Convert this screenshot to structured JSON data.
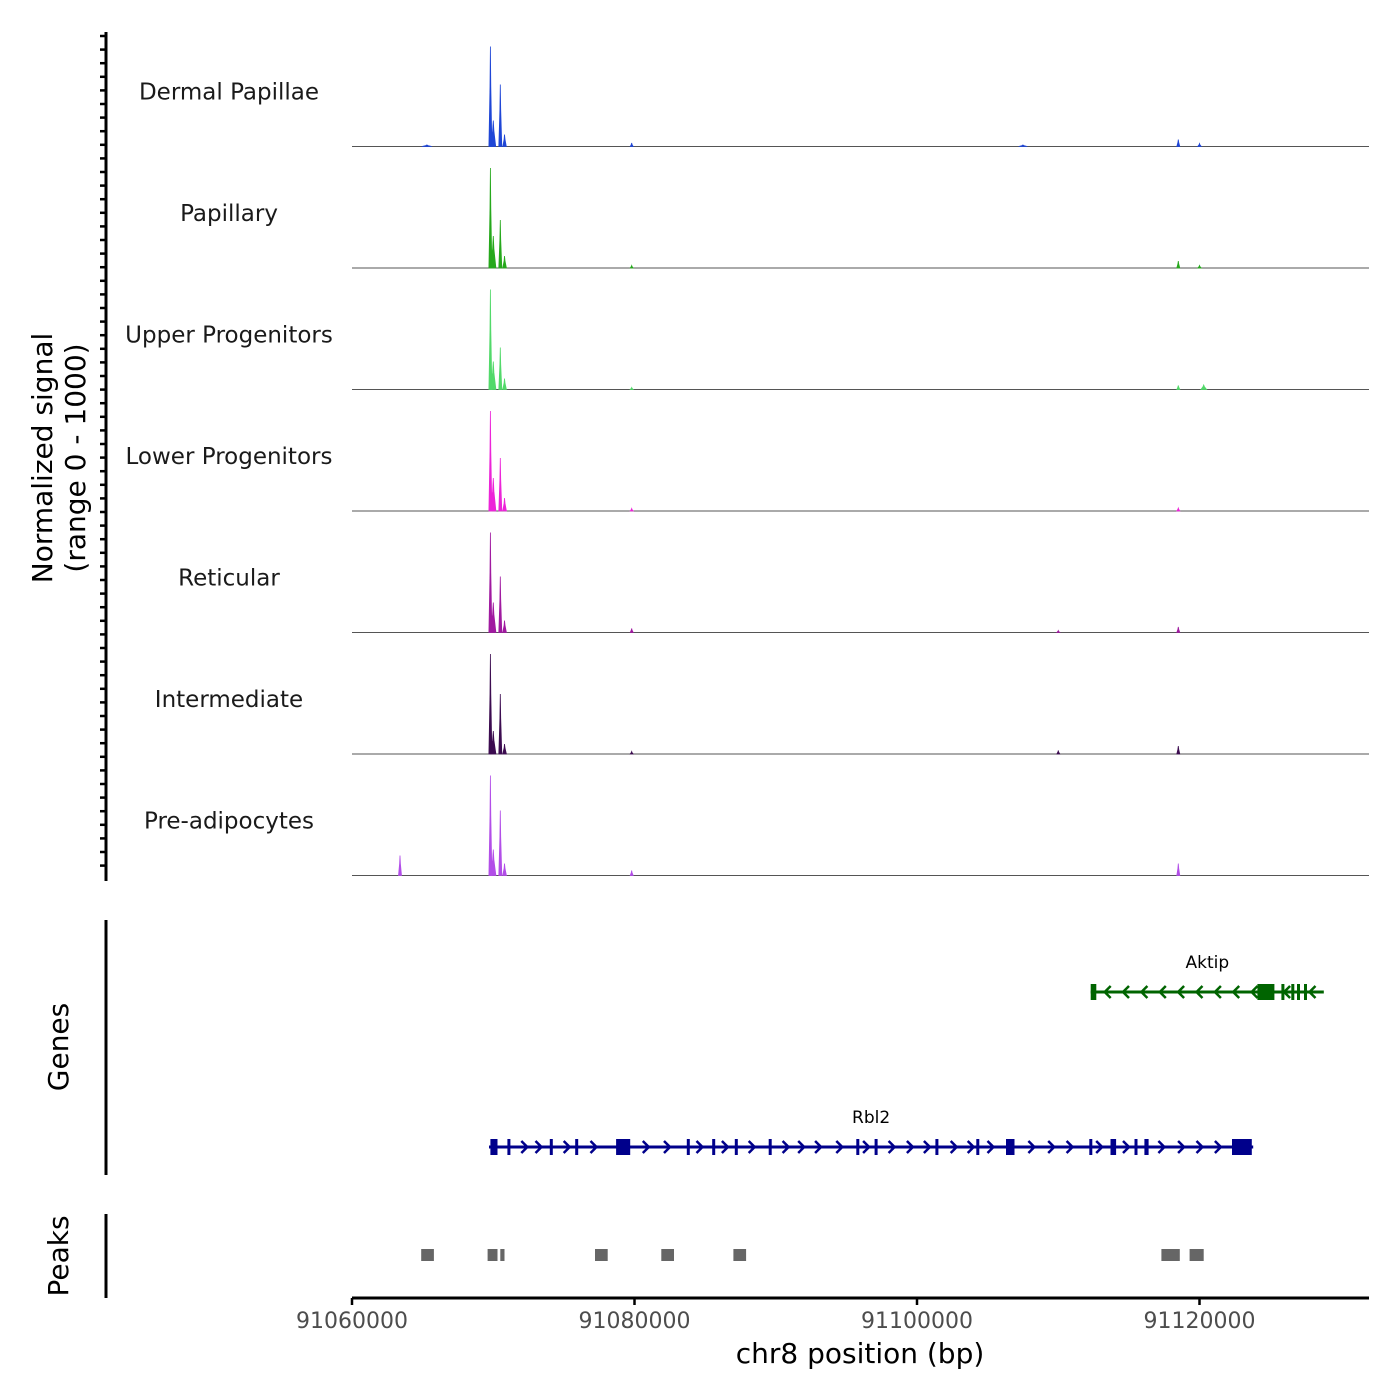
{
  "chart_data": {
    "type": "coverage-track",
    "chromosome": "chr8",
    "region": [
      91060000,
      91132000
    ],
    "xlabel": "chr8 position (bp)",
    "x_ticks": [
      91060000,
      91080000,
      91100000,
      91120000
    ],
    "x_tick_labels": [
      "91060000",
      "91080000",
      "91100000",
      "91120000"
    ],
    "ylabel_line1": "Normalized signal",
    "ylabel_line2": "(range 0 - 1000)",
    "ylim": [
      0,
      1000
    ],
    "tracks": [
      {
        "name": "Dermal Papillae",
        "color": "#1f46d6",
        "peaks": [
          {
            "pos": 91065300,
            "height": 15,
            "width": 700
          },
          {
            "pos": 91069800,
            "height": 1000,
            "width": 90
          },
          {
            "pos": 91070000,
            "height": 260,
            "width": 350
          },
          {
            "pos": 91070500,
            "height": 620,
            "width": 90
          },
          {
            "pos": 91070800,
            "height": 120,
            "width": 250
          },
          {
            "pos": 91079800,
            "height": 35,
            "width": 110
          },
          {
            "pos": 91107500,
            "height": 15,
            "width": 600
          },
          {
            "pos": 91118500,
            "height": 70,
            "width": 200
          },
          {
            "pos": 91120000,
            "height": 30,
            "width": 250
          }
        ]
      },
      {
        "name": "Papillary",
        "color": "#26a81c",
        "peaks": [
          {
            "pos": 91069800,
            "height": 1000,
            "width": 90
          },
          {
            "pos": 91070000,
            "height": 320,
            "width": 380
          },
          {
            "pos": 91070500,
            "height": 480,
            "width": 90
          },
          {
            "pos": 91070800,
            "height": 120,
            "width": 260
          },
          {
            "pos": 91079800,
            "height": 25,
            "width": 110
          },
          {
            "pos": 91118500,
            "height": 70,
            "width": 200
          },
          {
            "pos": 91120000,
            "height": 25,
            "width": 250
          }
        ]
      },
      {
        "name": "Upper Progenitors",
        "color": "#52d96a",
        "peaks": [
          {
            "pos": 91069800,
            "height": 1000,
            "width": 90
          },
          {
            "pos": 91070000,
            "height": 280,
            "width": 380
          },
          {
            "pos": 91070500,
            "height": 420,
            "width": 90
          },
          {
            "pos": 91070800,
            "height": 110,
            "width": 260
          },
          {
            "pos": 91079800,
            "height": 20,
            "width": 110
          },
          {
            "pos": 91118500,
            "height": 40,
            "width": 200
          },
          {
            "pos": 91120300,
            "height": 45,
            "width": 400
          }
        ]
      },
      {
        "name": "Lower Progenitors",
        "color": "#ec24d8",
        "peaks": [
          {
            "pos": 91069800,
            "height": 1000,
            "width": 90
          },
          {
            "pos": 91070000,
            "height": 330,
            "width": 380
          },
          {
            "pos": 91070500,
            "height": 530,
            "width": 90
          },
          {
            "pos": 91070800,
            "height": 130,
            "width": 260
          },
          {
            "pos": 91079800,
            "height": 25,
            "width": 110
          },
          {
            "pos": 91118500,
            "height": 30,
            "width": 200
          }
        ]
      },
      {
        "name": "Reticular",
        "color": "#a01aa0",
        "peaks": [
          {
            "pos": 91069800,
            "height": 1000,
            "width": 90
          },
          {
            "pos": 91070000,
            "height": 300,
            "width": 380
          },
          {
            "pos": 91070500,
            "height": 560,
            "width": 90
          },
          {
            "pos": 91070800,
            "height": 120,
            "width": 260
          },
          {
            "pos": 91079800,
            "height": 40,
            "width": 110
          },
          {
            "pos": 91110000,
            "height": 20,
            "width": 150
          },
          {
            "pos": 91118500,
            "height": 55,
            "width": 200
          }
        ]
      },
      {
        "name": "Intermediate",
        "color": "#3c0c50",
        "peaks": [
          {
            "pos": 91069800,
            "height": 1000,
            "width": 90
          },
          {
            "pos": 91070000,
            "height": 230,
            "width": 380
          },
          {
            "pos": 91070500,
            "height": 600,
            "width": 90
          },
          {
            "pos": 91070800,
            "height": 100,
            "width": 260
          },
          {
            "pos": 91079800,
            "height": 25,
            "width": 110
          },
          {
            "pos": 91110000,
            "height": 35,
            "width": 150
          },
          {
            "pos": 91118500,
            "height": 80,
            "width": 200
          }
        ]
      },
      {
        "name": "Pre-adipocytes",
        "color": "#b24ee8",
        "peaks": [
          {
            "pos": 91063400,
            "height": 200,
            "width": 130
          },
          {
            "pos": 91069800,
            "height": 1000,
            "width": 90
          },
          {
            "pos": 91070000,
            "height": 260,
            "width": 380
          },
          {
            "pos": 91070500,
            "height": 650,
            "width": 90
          },
          {
            "pos": 91070800,
            "height": 120,
            "width": 260
          },
          {
            "pos": 91079800,
            "height": 50,
            "width": 110
          },
          {
            "pos": 91118500,
            "height": 120,
            "width": 180
          }
        ]
      }
    ],
    "genes_title": "Genes",
    "genes": [
      {
        "name": "Aktip",
        "strand": "-",
        "color": "#006400",
        "start": 91112300,
        "end": 91128800,
        "exons": [
          [
            91112300,
            91112700
          ],
          [
            91124100,
            91125300
          ],
          [
            91125800,
            91126000
          ],
          [
            91126500,
            91126700
          ],
          [
            91126900,
            91127100
          ],
          [
            91127400,
            91127600
          ]
        ],
        "chevrons": [
          91113500,
          91114800,
          91116100,
          91117400,
          91118700,
          91120000,
          91121300,
          91122600,
          91123900,
          91126200,
          91128000
        ]
      },
      {
        "name": "Rbl2",
        "strand": "+",
        "color": "#00008b",
        "start": 91069700,
        "end": 91123800,
        "exons": [
          [
            91069800,
            91070300
          ],
          [
            91071000,
            91071100
          ],
          [
            91074000,
            91074100
          ],
          [
            91075800,
            91075950
          ],
          [
            91078700,
            91079700
          ],
          [
            91083700,
            91083800
          ],
          [
            91085500,
            91085650
          ],
          [
            91087100,
            91087200
          ],
          [
            91089500,
            91089600
          ],
          [
            91095700,
            91095800
          ],
          [
            91097000,
            91097100
          ],
          [
            91101300,
            91101400
          ],
          [
            91104200,
            91104300
          ],
          [
            91106300,
            91106900
          ],
          [
            91112200,
            91112400
          ],
          [
            91113700,
            91114100
          ],
          [
            91115400,
            91115600
          ],
          [
            91116100,
            91116400
          ],
          [
            91122300,
            91123700
          ]
        ],
        "chevrons": [
          91072200,
          91073200,
          91075200,
          91077100,
          91080800,
          91082300,
          91084600,
          91086400,
          91088300,
          91090700,
          91091800,
          91093000,
          91094500,
          91096400,
          91098200,
          91099500,
          91100700,
          91102600,
          91103800,
          91105200,
          91108100,
          91109500,
          91110800,
          91112900,
          91114800,
          91117300,
          91118700,
          91120000,
          91121300
        ]
      }
    ],
    "peaks_title": "Peaks",
    "peak_regions": [
      [
        91064900,
        91065800
      ],
      [
        91069600,
        91070300
      ],
      [
        91070500,
        91070800
      ],
      [
        91077200,
        91078100
      ],
      [
        91081900,
        91082800
      ],
      [
        91087000,
        91087900
      ],
      [
        91117300,
        91118600
      ],
      [
        91119300,
        91120300
      ]
    ]
  }
}
